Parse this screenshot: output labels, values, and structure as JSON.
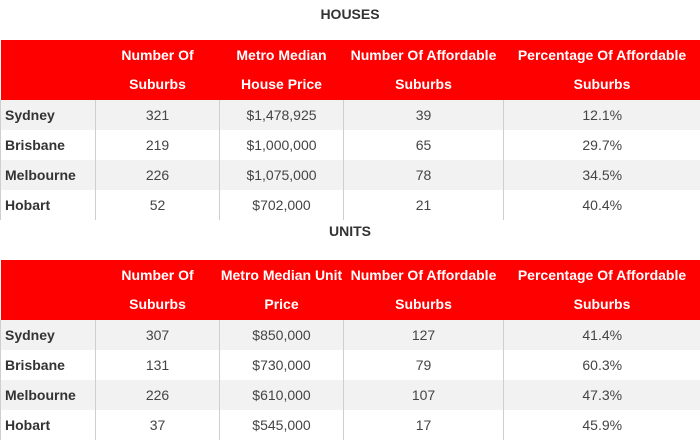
{
  "houses": {
    "title": "HOUSES",
    "headers": [
      "",
      "Number Of Suburbs",
      "Metro Median House Price",
      "Number Of Affordable Suburbs",
      "Percentage Of Affordable Suburbs"
    ],
    "rows": [
      [
        "Sydney",
        "321",
        "$1,478,925",
        "39",
        "12.1%"
      ],
      [
        "Brisbane",
        "219",
        "$1,000,000",
        "65",
        "29.7%"
      ],
      [
        "Melbourne",
        "226",
        "$1,075,000",
        "78",
        "34.5%"
      ],
      [
        "Hobart",
        "52",
        "$702,000",
        "21",
        "40.4%"
      ]
    ]
  },
  "units": {
    "title": "UNITS",
    "headers": [
      "",
      "Number Of Suburbs",
      "Metro Median Unit Price",
      "Number  Of Affordable Suburbs",
      "Percentage Of Affordable Suburbs"
    ],
    "rows": [
      [
        "Sydney",
        "307",
        "$850,000",
        "127",
        "41.4%"
      ],
      [
        "Brisbane",
        "131",
        "$730,000",
        "79",
        "60.3%"
      ],
      [
        "Melbourne",
        "226",
        "$610,000",
        "107",
        "47.3%"
      ],
      [
        "Hobart",
        "37",
        "$545,000",
        "17",
        "45.9%"
      ]
    ]
  },
  "colors": {
    "header_bg": "#ff0000",
    "header_text": "#ffffff",
    "row_alt": "#f2f2f2"
  }
}
